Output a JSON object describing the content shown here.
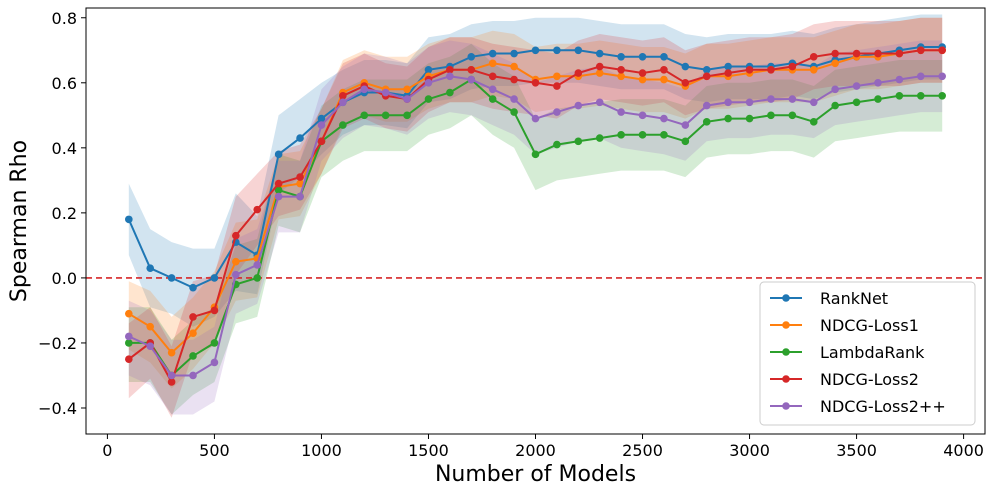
{
  "chart_data": {
    "type": "line",
    "title": "",
    "xlabel": "Number of Models",
    "ylabel": "Spearman Rho",
    "xlim": [
      -100,
      4100
    ],
    "ylim": [
      -0.48,
      0.83
    ],
    "xticks": [
      0,
      500,
      1000,
      1500,
      2000,
      2500,
      3000,
      3500,
      4000
    ],
    "yticks": [
      -0.4,
      -0.2,
      0.0,
      0.2,
      0.4,
      0.6,
      0.8
    ],
    "reference_line": {
      "y": 0.0,
      "color": "#d62728",
      "style": "dashed"
    },
    "legend_position": "lower-right",
    "x": [
      100,
      200,
      300,
      400,
      500,
      600,
      700,
      800,
      900,
      1000,
      1100,
      1200,
      1300,
      1400,
      1500,
      1600,
      1700,
      1800,
      1900,
      2000,
      2100,
      2200,
      2300,
      2400,
      2500,
      2600,
      2700,
      2800,
      2900,
      3000,
      3100,
      3200,
      3300,
      3400,
      3500,
      3600,
      3700,
      3800,
      3900
    ],
    "series": [
      {
        "name": "RankNet",
        "color": "#1f77b4",
        "values": [
          0.18,
          0.03,
          0.0,
          -0.03,
          0.0,
          0.11,
          0.07,
          0.38,
          0.43,
          0.49,
          0.54,
          0.57,
          0.57,
          0.56,
          0.64,
          0.65,
          0.68,
          0.69,
          0.69,
          0.7,
          0.7,
          0.7,
          0.69,
          0.68,
          0.68,
          0.68,
          0.65,
          0.64,
          0.65,
          0.65,
          0.65,
          0.66,
          0.65,
          0.67,
          0.68,
          0.69,
          0.7,
          0.71,
          0.71
        ],
        "lower": [
          0.07,
          -0.09,
          -0.11,
          -0.15,
          -0.12,
          -0.04,
          -0.05,
          0.26,
          0.31,
          0.38,
          0.44,
          0.47,
          0.47,
          0.46,
          0.54,
          0.55,
          0.58,
          0.59,
          0.59,
          0.6,
          0.6,
          0.6,
          0.59,
          0.58,
          0.58,
          0.58,
          0.55,
          0.54,
          0.55,
          0.55,
          0.55,
          0.56,
          0.55,
          0.57,
          0.58,
          0.59,
          0.6,
          0.61,
          0.61
        ],
        "upper": [
          0.29,
          0.15,
          0.11,
          0.09,
          0.09,
          0.26,
          0.19,
          0.5,
          0.55,
          0.6,
          0.64,
          0.67,
          0.67,
          0.66,
          0.74,
          0.75,
          0.78,
          0.79,
          0.79,
          0.8,
          0.8,
          0.8,
          0.79,
          0.78,
          0.78,
          0.78,
          0.75,
          0.74,
          0.75,
          0.75,
          0.75,
          0.76,
          0.75,
          0.77,
          0.78,
          0.79,
          0.8,
          0.81,
          0.81
        ]
      },
      {
        "name": "NDCG-Loss1",
        "color": "#ff7f0e",
        "values": [
          -0.11,
          -0.15,
          -0.23,
          -0.17,
          -0.09,
          0.05,
          0.06,
          0.28,
          0.29,
          0.42,
          0.57,
          0.6,
          0.58,
          0.58,
          0.62,
          0.64,
          0.64,
          0.66,
          0.65,
          0.61,
          0.62,
          0.62,
          0.63,
          0.62,
          0.61,
          0.61,
          0.59,
          0.62,
          0.62,
          0.63,
          0.64,
          0.64,
          0.64,
          0.66,
          0.68,
          0.68,
          0.69,
          0.7,
          0.7
        ],
        "lower": [
          -0.22,
          -0.26,
          -0.34,
          -0.28,
          -0.2,
          -0.07,
          -0.06,
          0.18,
          0.19,
          0.32,
          0.47,
          0.5,
          0.48,
          0.48,
          0.52,
          0.54,
          0.54,
          0.56,
          0.55,
          0.51,
          0.52,
          0.52,
          0.53,
          0.52,
          0.51,
          0.51,
          0.49,
          0.52,
          0.52,
          0.53,
          0.54,
          0.54,
          0.54,
          0.56,
          0.58,
          0.58,
          0.59,
          0.6,
          0.6
        ],
        "upper": [
          -0.01,
          -0.04,
          -0.12,
          -0.06,
          0.02,
          0.17,
          0.18,
          0.38,
          0.39,
          0.52,
          0.67,
          0.7,
          0.68,
          0.68,
          0.72,
          0.74,
          0.74,
          0.76,
          0.75,
          0.71,
          0.72,
          0.72,
          0.73,
          0.72,
          0.71,
          0.71,
          0.69,
          0.72,
          0.72,
          0.73,
          0.74,
          0.74,
          0.74,
          0.76,
          0.78,
          0.78,
          0.79,
          0.8,
          0.8
        ]
      },
      {
        "name": "LambdaRank",
        "color": "#2ca02c",
        "values": [
          -0.2,
          -0.2,
          -0.3,
          -0.24,
          -0.2,
          -0.02,
          0.0,
          0.27,
          0.25,
          0.42,
          0.47,
          0.5,
          0.5,
          0.5,
          0.55,
          0.57,
          0.61,
          0.55,
          0.51,
          0.38,
          0.41,
          0.42,
          0.43,
          0.44,
          0.44,
          0.44,
          0.42,
          0.48,
          0.49,
          0.49,
          0.5,
          0.5,
          0.48,
          0.53,
          0.54,
          0.55,
          0.56,
          0.56,
          0.56
        ],
        "lower": [
          -0.32,
          -0.32,
          -0.42,
          -0.36,
          -0.32,
          -0.14,
          -0.12,
          0.16,
          0.14,
          0.31,
          0.36,
          0.39,
          0.39,
          0.39,
          0.44,
          0.46,
          0.5,
          0.44,
          0.4,
          0.27,
          0.3,
          0.31,
          0.32,
          0.33,
          0.33,
          0.33,
          0.31,
          0.37,
          0.38,
          0.38,
          0.39,
          0.39,
          0.37,
          0.42,
          0.43,
          0.44,
          0.45,
          0.45,
          0.45
        ],
        "upper": [
          -0.09,
          -0.09,
          -0.19,
          -0.13,
          -0.09,
          0.1,
          0.12,
          0.38,
          0.36,
          0.53,
          0.58,
          0.61,
          0.61,
          0.61,
          0.66,
          0.68,
          0.72,
          0.66,
          0.62,
          0.49,
          0.52,
          0.53,
          0.54,
          0.55,
          0.55,
          0.55,
          0.53,
          0.59,
          0.6,
          0.6,
          0.61,
          0.61,
          0.59,
          0.64,
          0.65,
          0.66,
          0.67,
          0.67,
          0.67
        ]
      },
      {
        "name": "NDCG-Loss2",
        "color": "#d62728",
        "values": [
          -0.25,
          -0.2,
          -0.32,
          -0.12,
          -0.1,
          0.13,
          0.21,
          0.29,
          0.31,
          0.42,
          0.56,
          0.59,
          0.56,
          0.55,
          0.61,
          0.64,
          0.64,
          0.62,
          0.61,
          0.6,
          0.59,
          0.63,
          0.65,
          0.64,
          0.63,
          0.64,
          0.6,
          0.62,
          0.63,
          0.64,
          0.64,
          0.65,
          0.68,
          0.69,
          0.69,
          0.69,
          0.69,
          0.7,
          0.7
        ],
        "lower": [
          -0.37,
          -0.31,
          -0.43,
          -0.23,
          -0.21,
          0.01,
          0.1,
          0.19,
          0.21,
          0.32,
          0.46,
          0.49,
          0.46,
          0.45,
          0.51,
          0.54,
          0.54,
          0.52,
          0.51,
          0.5,
          0.49,
          0.53,
          0.55,
          0.54,
          0.53,
          0.54,
          0.5,
          0.52,
          0.53,
          0.54,
          0.54,
          0.55,
          0.58,
          0.59,
          0.59,
          0.59,
          0.59,
          0.6,
          0.6
        ],
        "upper": [
          -0.14,
          -0.09,
          -0.21,
          -0.01,
          0.01,
          0.25,
          0.32,
          0.39,
          0.41,
          0.52,
          0.66,
          0.69,
          0.66,
          0.65,
          0.71,
          0.74,
          0.74,
          0.72,
          0.71,
          0.7,
          0.69,
          0.73,
          0.75,
          0.74,
          0.73,
          0.74,
          0.7,
          0.72,
          0.73,
          0.74,
          0.74,
          0.75,
          0.78,
          0.79,
          0.79,
          0.79,
          0.79,
          0.8,
          0.8
        ]
      },
      {
        "name": "NDCG-Loss2++",
        "color": "#9467bd",
        "values": [
          -0.18,
          -0.21,
          -0.3,
          -0.3,
          -0.26,
          0.01,
          0.04,
          0.25,
          0.25,
          0.47,
          0.54,
          0.58,
          0.57,
          0.55,
          0.6,
          0.62,
          0.61,
          0.58,
          0.55,
          0.49,
          0.51,
          0.53,
          0.54,
          0.51,
          0.5,
          0.49,
          0.47,
          0.53,
          0.54,
          0.54,
          0.55,
          0.55,
          0.54,
          0.58,
          0.59,
          0.6,
          0.61,
          0.62,
          0.62
        ],
        "lower": [
          -0.3,
          -0.33,
          -0.42,
          -0.42,
          -0.38,
          -0.11,
          -0.08,
          0.14,
          0.14,
          0.36,
          0.43,
          0.47,
          0.46,
          0.44,
          0.49,
          0.51,
          0.5,
          0.47,
          0.44,
          0.38,
          0.4,
          0.42,
          0.43,
          0.4,
          0.39,
          0.38,
          0.36,
          0.42,
          0.43,
          0.43,
          0.44,
          0.44,
          0.43,
          0.47,
          0.48,
          0.49,
          0.5,
          0.51,
          0.51
        ],
        "upper": [
          -0.07,
          -0.1,
          -0.19,
          -0.19,
          -0.15,
          0.12,
          0.15,
          0.36,
          0.36,
          0.58,
          0.65,
          0.69,
          0.68,
          0.66,
          0.71,
          0.73,
          0.72,
          0.69,
          0.66,
          0.6,
          0.62,
          0.64,
          0.65,
          0.62,
          0.61,
          0.6,
          0.58,
          0.64,
          0.65,
          0.65,
          0.66,
          0.66,
          0.65,
          0.69,
          0.7,
          0.71,
          0.72,
          0.73,
          0.73
        ]
      }
    ]
  }
}
